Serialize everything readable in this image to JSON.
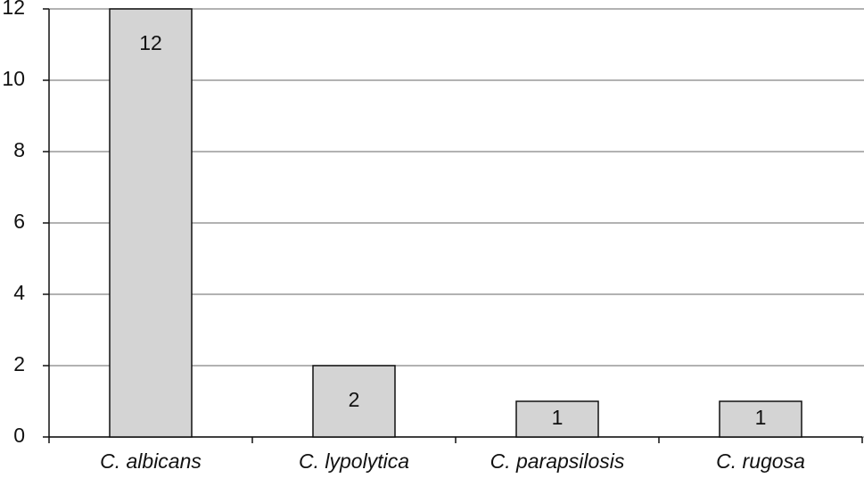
{
  "chart_data": {
    "type": "bar",
    "categories": [
      "C. albicans",
      "C. lypolytica",
      "C. parapsilosis",
      "C. rugosa"
    ],
    "values": [
      12,
      2,
      1,
      1
    ],
    "color": "#d4d4d4",
    "ylim": [
      0,
      12
    ],
    "yticks": [
      0,
      2,
      4,
      6,
      8,
      10,
      12
    ],
    "grid": true
  }
}
